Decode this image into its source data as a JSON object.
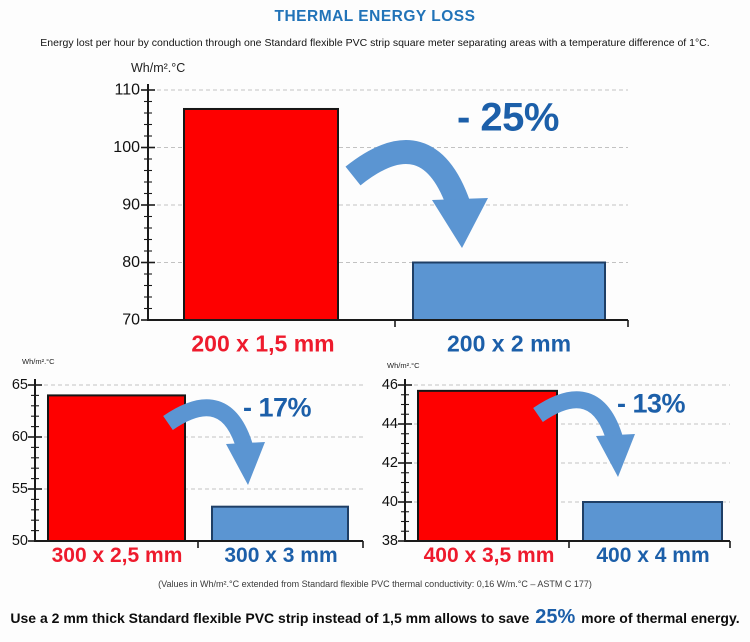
{
  "title": "THERMAL ENERGY LOSS",
  "subtitle": "Energy lost per hour by conduction through one Standard flexible PVC strip square meter separating areas with a temperature difference of 1°C.",
  "footnote": "(Values in Wh/m².°C extended from Standard flexible PVC thermal conductivity: 0,16 W/m.°C – ASTM C 177)",
  "conclusion": {
    "prefix": "Use a 2 mm thick Standard flexible PVC strip instead of 1,5 mm allows to save ",
    "highlight": "25%",
    "suffix": " more of thermal energy."
  },
  "colors": {
    "red_bar": "#fe0000",
    "red_bar_stroke": "#161616",
    "blue_bar": "#5b95d2",
    "blue_bar_stroke": "#1f3f66",
    "arrow": "#5b95d2",
    "axis": "#1a1a1a",
    "gridline": "#c2c2c2",
    "title_blue": "#2173b8",
    "dark_blue": "#1c5fa9",
    "label_red": "#ee1b2d"
  },
  "chart_data": [
    {
      "type": "bar",
      "unit_label": "Wh/m².°C",
      "categories": [
        "200 x 1,5 mm",
        "200 x 2 mm"
      ],
      "values": [
        106.7,
        80
      ],
      "bar_colors": [
        "red",
        "blue"
      ],
      "ylim": [
        70,
        110
      ],
      "major_tick_step": 10,
      "minor_tick_step": 2,
      "grid": "dashed-horizontal",
      "annotation": "- 25%"
    },
    {
      "type": "bar",
      "unit_label": "Wh/m².°C",
      "categories": [
        "300 x 2,5 mm",
        "300 x 3 mm"
      ],
      "values": [
        64,
        53.3
      ],
      "bar_colors": [
        "red",
        "blue"
      ],
      "ylim": [
        50,
        65
      ],
      "major_tick_step": 5,
      "minor_tick_step": 1,
      "grid": "dashed-horizontal",
      "annotation": "- 17%"
    },
    {
      "type": "bar",
      "unit_label": "Wh/m².°C",
      "categories": [
        "400 x 3,5 mm",
        "400 x 4 mm"
      ],
      "values": [
        45.7,
        40
      ],
      "bar_colors": [
        "red",
        "blue"
      ],
      "ylim": [
        38,
        46
      ],
      "major_tick_step": 2,
      "minor_tick_step": 0.5,
      "grid": "dashed-horizontal",
      "annotation": "- 13%"
    }
  ]
}
